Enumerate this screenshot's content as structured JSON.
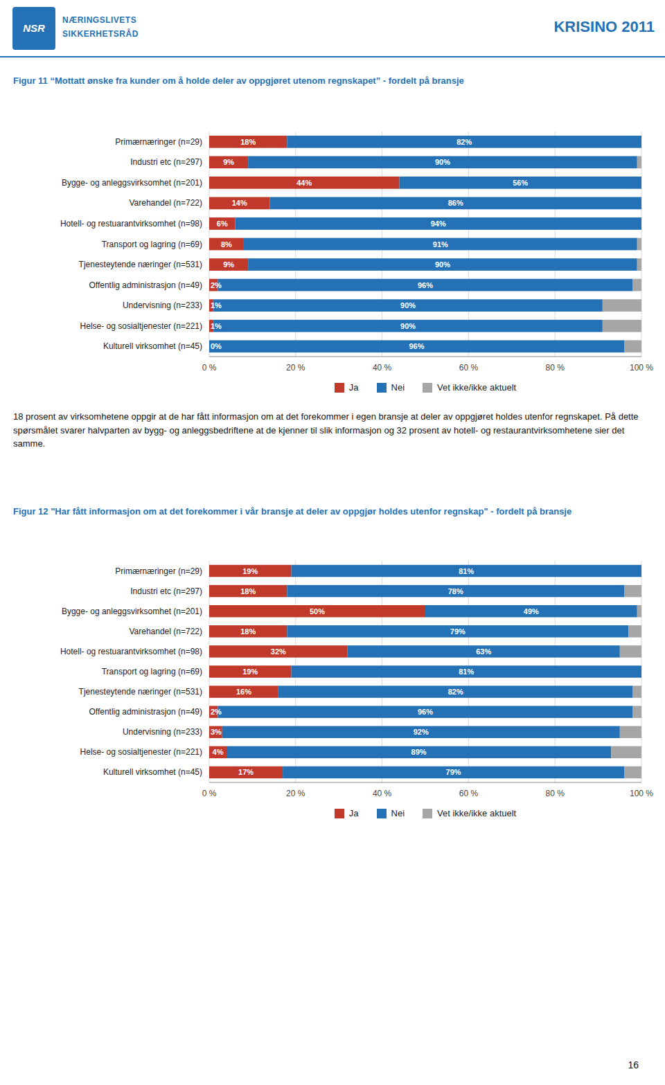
{
  "header": {
    "logo": "NSR",
    "org_lines": [
      "NÆRINGSLIVETS",
      "SIKKERHETSRÅD"
    ],
    "report": "KRISINO 2011"
  },
  "body_text": "18 prosent av virksomhetene oppgir at de har fått informasjon om at det forekommer i egen bransje at deler av oppgjøret holdes utenfor regnskapet. På dette spørsmålet svarer halvparten av bygg- og anleggsbedriftene at de kjenner til slik informasjon og 32 prosent av hotell- og restaurantvirksomhetene sier det samme.",
  "page_number": "16",
  "chart_data": [
    {
      "type": "bar",
      "orientation": "horizontal",
      "stacked": true,
      "title": "Figur 11 “Mottatt ønske fra kunder om å holde deler av oppgjøret utenom regnskapet” - fordelt på bransje",
      "categories": [
        "Primærnæringer (n=29)",
        "Industri etc (n=297)",
        "Bygge- og anleggsvirksomhet (n=201)",
        "Varehandel (n=722)",
        "Hotell- og restuarantvirksomhet (n=98)",
        "Transport og lagring (n=69)",
        "Tjenesteytende næringer (n=531)",
        "Offentlig administrasjon (n=49)",
        "Undervisning (n=233)",
        "Helse- og sosialtjenester (n=221)",
        "Kulturell virksomhet (n=45)"
      ],
      "series": [
        {
          "name": "Ja",
          "color": "#c0392b",
          "data_labels": true,
          "values": [
            18,
            9,
            44,
            14,
            6,
            8,
            9,
            2,
            1,
            1,
            0
          ],
          "value_labels": [
            "18%",
            "9%",
            "44%",
            "14%",
            "6%",
            "8%",
            "9%",
            "2%",
            "1%",
            "1%",
            "0%"
          ]
        },
        {
          "name": "Nei",
          "color": "#2472b5",
          "data_labels": true,
          "values": [
            82,
            90,
            56,
            86,
            94,
            91,
            90,
            96,
            90,
            90,
            96
          ],
          "value_labels": [
            "82%",
            "90%",
            "56%",
            "86%",
            "94%",
            "91%",
            "90%",
            "96%",
            "90%",
            "90%",
            "96%"
          ]
        },
        {
          "name": "Vet ikke/ikke aktuelt",
          "color": "#a6a6a6",
          "data_labels": false,
          "values": [
            0,
            1,
            0,
            0,
            0,
            1,
            1,
            2,
            9,
            9,
            4
          ]
        }
      ],
      "xlim": [
        0,
        100
      ],
      "xticks": [
        {
          "value": 0,
          "label": "0 %"
        },
        {
          "value": 20,
          "label": "20 %"
        },
        {
          "value": 40,
          "label": "40 %"
        },
        {
          "value": 60,
          "label": "60 %"
        },
        {
          "value": 80,
          "label": "80 %"
        },
        {
          "value": 100,
          "label": "100 %"
        }
      ],
      "grid": true,
      "legend": "bottom"
    },
    {
      "type": "bar",
      "orientation": "horizontal",
      "stacked": true,
      "title": "Figur 12 \"Har fått informasjon om at det forekommer i vår bransje at deler av oppgjør holdes utenfor regnskap\" - fordelt på bransje",
      "categories": [
        "Primærnæringer (n=29)",
        "Industri etc (n=297)",
        "Bygge- og anleggsvirksomhet (n=201)",
        "Varehandel (n=722)",
        "Hotell- og restuarantvirksomhet (n=98)",
        "Transport og lagring (n=69)",
        "Tjenesteytende næringer (n=531)",
        "Offentlig administrasjon (n=49)",
        "Undervisning (n=233)",
        "Helse- og sosialtjenester (n=221)",
        "Kulturell virksomhet (n=45)"
      ],
      "series": [
        {
          "name": "Ja",
          "color": "#c0392b",
          "data_labels": true,
          "values": [
            19,
            18,
            50,
            18,
            32,
            19,
            16,
            2,
            3,
            4,
            17
          ],
          "value_labels": [
            "19%",
            "18%",
            "50%",
            "18%",
            "32%",
            "19%",
            "16%",
            "2%",
            "3%",
            "4%",
            "17%"
          ]
        },
        {
          "name": "Nei",
          "color": "#2472b5",
          "data_labels": true,
          "values": [
            81,
            78,
            49,
            79,
            63,
            81,
            82,
            96,
            92,
            89,
            79
          ],
          "value_labels": [
            "81%",
            "78%",
            "49%",
            "79%",
            "63%",
            "81%",
            "82%",
            "96%",
            "92%",
            "89%",
            "79%"
          ]
        },
        {
          "name": "Vet ikke/ikke aktuelt",
          "color": "#a6a6a6",
          "data_labels": false,
          "values": [
            0,
            4,
            1,
            3,
            5,
            0,
            2,
            2,
            5,
            7,
            4
          ]
        }
      ],
      "xlim": [
        0,
        100
      ],
      "xticks": [
        {
          "value": 0,
          "label": "0 %"
        },
        {
          "value": 20,
          "label": "20 %"
        },
        {
          "value": 40,
          "label": "40 %"
        },
        {
          "value": 60,
          "label": "60 %"
        },
        {
          "value": 80,
          "label": "80 %"
        },
        {
          "value": 100,
          "label": "100 %"
        }
      ],
      "grid": true,
      "legend": "bottom"
    }
  ]
}
